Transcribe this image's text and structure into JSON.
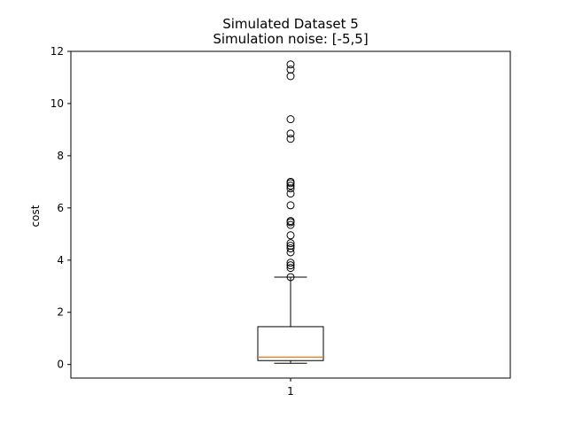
{
  "chart_data": {
    "type": "boxplot",
    "title": "Simulated Dataset 5",
    "subtitle": "Simulation noise: [-5,5]",
    "xlabel": "",
    "ylabel": "cost",
    "ylim": [
      -0.52,
      12.0
    ],
    "yticks": [
      0,
      2,
      4,
      6,
      8,
      10,
      12
    ],
    "categories": [
      "1"
    ],
    "boxes": [
      {
        "label": "1",
        "whisker_low": 0.05,
        "q1": 0.15,
        "median": 0.28,
        "q3": 1.45,
        "whisker_high": 3.35,
        "fliers": [
          3.35,
          3.7,
          3.8,
          3.9,
          4.3,
          4.45,
          4.55,
          4.65,
          4.95,
          5.35,
          5.45,
          5.5,
          6.1,
          6.55,
          6.75,
          6.85,
          6.95,
          7.0,
          8.65,
          8.85,
          9.4,
          11.05,
          11.3,
          11.5
        ]
      }
    ],
    "colors": {
      "median": "#ff7f0e",
      "box": "#000000",
      "flier": "#000000"
    },
    "grid": false
  }
}
